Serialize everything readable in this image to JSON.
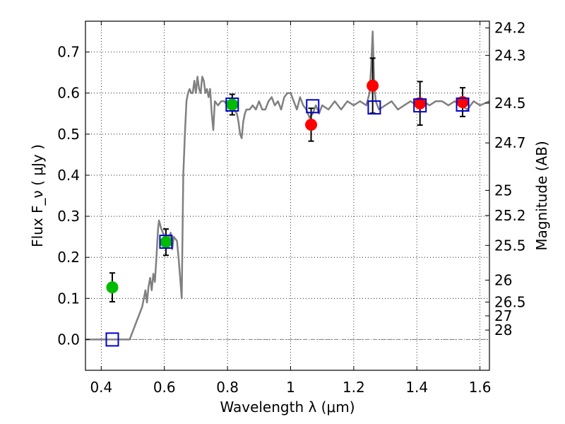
{
  "chart_data": {
    "type": "scatter",
    "title": "",
    "xlabel": "Wavelength  λ (μm)",
    "ylabel": "Flux  F_ν  ( μJy )",
    "y2label": "Magnitude (AB)",
    "xlim": [
      0.35,
      1.63
    ],
    "ylim": [
      -0.075,
      0.775
    ],
    "grid": true,
    "x_ticks": [
      0.4,
      0.6,
      0.8,
      1.0,
      1.2,
      1.4,
      1.6
    ],
    "x_tick_labels": [
      "0.4",
      "0.6",
      "0.8",
      "1",
      "1.2",
      "1.4",
      "1.6"
    ],
    "y_ticks": [
      0.0,
      0.1,
      0.2,
      0.3,
      0.4,
      0.5,
      0.6,
      0.7
    ],
    "y_tick_labels": [
      "0.0",
      "0.1",
      "0.2",
      "0.3",
      "0.4",
      "0.5",
      "0.6",
      "0.7"
    ],
    "y2_ticks": [
      {
        "label": "24.2",
        "mag": 24.2
      },
      {
        "label": "24.3",
        "mag": 24.3
      },
      {
        "label": "24.5",
        "mag": 24.5
      },
      {
        "label": "24.7",
        "mag": 24.7
      },
      {
        "label": "25",
        "mag": 25.0
      },
      {
        "label": "25.2",
        "mag": 25.2
      },
      {
        "label": "25.5",
        "mag": 25.5
      },
      {
        "label": "26",
        "mag": 26.0
      },
      {
        "label": "26.5",
        "mag": 26.5
      },
      {
        "label": "27",
        "mag": 27.0
      },
      {
        "label": "28",
        "mag": 28.0
      }
    ],
    "colors": {
      "spectrum": "#808080",
      "model_marker": "#0000cc",
      "green_point": "#00bb00",
      "red_point": "#ff0000",
      "errorbar": "#000000",
      "grid": "#000000",
      "zero_line": "#808080"
    },
    "spectrum": [
      [
        0.35,
        0.0
      ],
      [
        0.49,
        0.0
      ],
      [
        0.5,
        0.02
      ],
      [
        0.52,
        0.06
      ],
      [
        0.53,
        0.08
      ],
      [
        0.535,
        0.1
      ],
      [
        0.54,
        0.12
      ],
      [
        0.545,
        0.09
      ],
      [
        0.55,
        0.13
      ],
      [
        0.555,
        0.15
      ],
      [
        0.56,
        0.12
      ],
      [
        0.565,
        0.16
      ],
      [
        0.57,
        0.14
      ],
      [
        0.575,
        0.2
      ],
      [
        0.58,
        0.27
      ],
      [
        0.583,
        0.29
      ],
      [
        0.59,
        0.27
      ],
      [
        0.6,
        0.25
      ],
      [
        0.61,
        0.24
      ],
      [
        0.62,
        0.26
      ],
      [
        0.625,
        0.22
      ],
      [
        0.63,
        0.25
      ],
      [
        0.64,
        0.24
      ],
      [
        0.645,
        0.2
      ],
      [
        0.65,
        0.15
      ],
      [
        0.655,
        0.1
      ],
      [
        0.66,
        0.4
      ],
      [
        0.665,
        0.5
      ],
      [
        0.67,
        0.58
      ],
      [
        0.675,
        0.6
      ],
      [
        0.68,
        0.61
      ],
      [
        0.685,
        0.6
      ],
      [
        0.69,
        0.6
      ],
      [
        0.695,
        0.63
      ],
      [
        0.7,
        0.6
      ],
      [
        0.705,
        0.64
      ],
      [
        0.71,
        0.61
      ],
      [
        0.715,
        0.6
      ],
      [
        0.72,
        0.64
      ],
      [
        0.725,
        0.63
      ],
      [
        0.73,
        0.6
      ],
      [
        0.735,
        0.61
      ],
      [
        0.74,
        0.59
      ],
      [
        0.745,
        0.61
      ],
      [
        0.75,
        0.55
      ],
      [
        0.755,
        0.51
      ],
      [
        0.76,
        0.58
      ],
      [
        0.77,
        0.57
      ],
      [
        0.78,
        0.58
      ],
      [
        0.79,
        0.58
      ],
      [
        0.8,
        0.57
      ],
      [
        0.81,
        0.58
      ],
      [
        0.82,
        0.56
      ],
      [
        0.83,
        0.55
      ],
      [
        0.835,
        0.53
      ],
      [
        0.84,
        0.5
      ],
      [
        0.845,
        0.49
      ],
      [
        0.85,
        0.53
      ],
      [
        0.855,
        0.55
      ],
      [
        0.86,
        0.56
      ],
      [
        0.87,
        0.56
      ],
      [
        0.88,
        0.57
      ],
      [
        0.89,
        0.56
      ],
      [
        0.9,
        0.58
      ],
      [
        0.91,
        0.56
      ],
      [
        0.92,
        0.56
      ],
      [
        0.93,
        0.58
      ],
      [
        0.94,
        0.59
      ],
      [
        0.95,
        0.57
      ],
      [
        0.96,
        0.58
      ],
      [
        0.97,
        0.56
      ],
      [
        0.98,
        0.59
      ],
      [
        0.99,
        0.6
      ],
      [
        1.0,
        0.6
      ],
      [
        1.01,
        0.58
      ],
      [
        1.02,
        0.56
      ],
      [
        1.03,
        0.59
      ],
      [
        1.04,
        0.57
      ],
      [
        1.05,
        0.56
      ],
      [
        1.06,
        0.54
      ],
      [
        1.07,
        0.55
      ],
      [
        1.08,
        0.57
      ],
      [
        1.09,
        0.55
      ],
      [
        1.1,
        0.57
      ],
      [
        1.12,
        0.56
      ],
      [
        1.14,
        0.58
      ],
      [
        1.16,
        0.56
      ],
      [
        1.18,
        0.58
      ],
      [
        1.2,
        0.57
      ],
      [
        1.22,
        0.58
      ],
      [
        1.24,
        0.57
      ],
      [
        1.25,
        0.6
      ],
      [
        1.255,
        0.66
      ],
      [
        1.26,
        0.75
      ],
      [
        1.265,
        0.62
      ],
      [
        1.27,
        0.58
      ],
      [
        1.28,
        0.56
      ],
      [
        1.3,
        0.57
      ],
      [
        1.32,
        0.58
      ],
      [
        1.34,
        0.56
      ],
      [
        1.36,
        0.57
      ],
      [
        1.38,
        0.58
      ],
      [
        1.4,
        0.57
      ],
      [
        1.42,
        0.58
      ],
      [
        1.44,
        0.57
      ],
      [
        1.46,
        0.58
      ],
      [
        1.48,
        0.58
      ],
      [
        1.5,
        0.57
      ],
      [
        1.52,
        0.58
      ],
      [
        1.54,
        0.57
      ],
      [
        1.56,
        0.56
      ],
      [
        1.58,
        0.58
      ],
      [
        1.6,
        0.57
      ],
      [
        1.63,
        0.58
      ]
    ],
    "model_points": [
      {
        "x": 0.435,
        "y": 0.0
      },
      {
        "x": 0.605,
        "y": 0.238
      },
      {
        "x": 0.815,
        "y": 0.572
      },
      {
        "x": 1.07,
        "y": 0.568
      },
      {
        "x": 1.265,
        "y": 0.565
      },
      {
        "x": 1.41,
        "y": 0.57
      },
      {
        "x": 1.545,
        "y": 0.572
      }
    ],
    "series": [
      {
        "color_key": "green_point",
        "points": [
          {
            "x": 0.435,
            "y": 0.127,
            "err": 0.035
          },
          {
            "x": 0.605,
            "y": 0.237,
            "err": 0.032
          },
          {
            "x": 0.815,
            "y": 0.572,
            "err": 0.025
          }
        ]
      },
      {
        "color_key": "red_point",
        "points": [
          {
            "x": 1.065,
            "y": 0.523,
            "err": 0.04
          },
          {
            "x": 1.26,
            "y": 0.618,
            "err": 0.067
          },
          {
            "x": 1.41,
            "y": 0.575,
            "err": 0.053
          },
          {
            "x": 1.545,
            "y": 0.578,
            "err": 0.035
          }
        ]
      }
    ]
  }
}
